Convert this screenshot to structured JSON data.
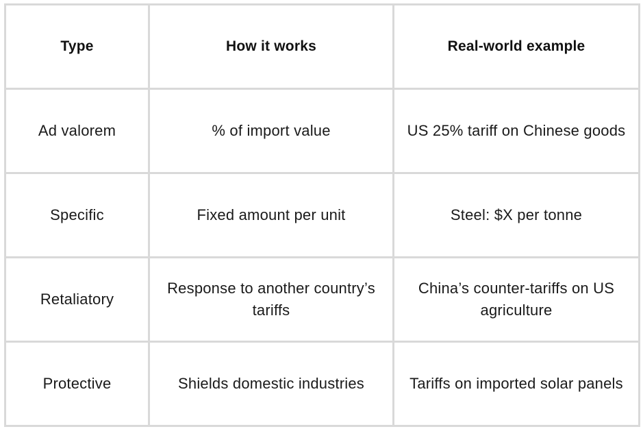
{
  "table": {
    "headers": [
      "Type",
      "How it works",
      "Real-world example"
    ],
    "rows": [
      [
        "Ad valorem",
        "% of import value",
        "US 25% tariff on Chinese goods"
      ],
      [
        "Specific",
        "Fixed amount per unit",
        "Steel: $X per tonne"
      ],
      [
        "Retaliatory",
        "Response to another country’s tariffs",
        "China’s counter-tariffs on US agriculture"
      ],
      [
        "Protective",
        "Shields domestic industries",
        "Tariffs on imported solar panels"
      ]
    ]
  },
  "colors": {
    "border": "#d9d9d9",
    "text": "#1a1a1a",
    "background": "#ffffff"
  }
}
